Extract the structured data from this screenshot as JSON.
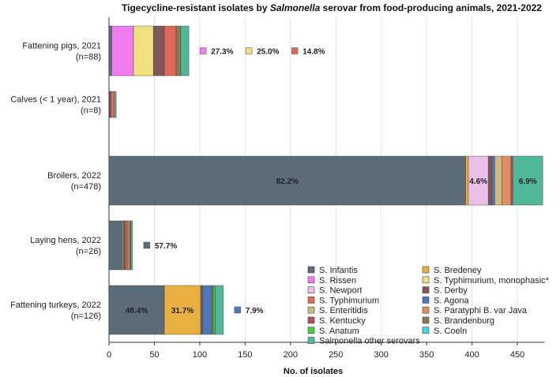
{
  "chart_data": {
    "type": "bar",
    "orientation": "horizontal",
    "stacked": true,
    "title_parts": [
      "Tigecycline-resistant isolates by ",
      "Salmonella",
      " serovar from food-producing animals, 2021-2022"
    ],
    "xlabel": "No. of isolates",
    "xlim": [
      0,
      480
    ],
    "xticks": [
      0,
      50,
      100,
      150,
      200,
      250,
      300,
      350,
      400,
      450
    ],
    "grid": "vertical",
    "legend_position": "bottom-right",
    "categories": [
      {
        "label": "Fattening pigs, 2021",
        "n": "(n=88)"
      },
      {
        "label": "Calves (< 1 year), 2021",
        "n": "(n=8)"
      },
      {
        "label": "Broilers, 2022",
        "n": "(n=478)"
      },
      {
        "label": "Laying hens, 2022",
        "n": "(n=26)"
      },
      {
        "label": "Fattening turkeys, 2022",
        "n": "(n=126)"
      }
    ],
    "series": [
      {
        "name": "S. Infantis",
        "color": "#5b6b78",
        "values": [
          3,
          1,
          393,
          15,
          61
        ]
      },
      {
        "name": "S. Bredeney",
        "color": "#e8b040",
        "values": [
          0,
          0,
          3,
          0,
          40
        ]
      },
      {
        "name": "S. Rissen",
        "color": "#f07cf0",
        "values": [
          24,
          0,
          0,
          0,
          0
        ]
      },
      {
        "name": "S. Typhimurium, monophasic*",
        "color": "#f0e080",
        "values": [
          22,
          0,
          0,
          1,
          0
        ]
      },
      {
        "name": "S. Newport",
        "color": "#e8c0e8",
        "values": [
          0,
          0,
          22,
          0,
          0
        ]
      },
      {
        "name": "S. Derby",
        "color": "#805858",
        "values": [
          12,
          1,
          4,
          2,
          2
        ]
      },
      {
        "name": "S. Typhimurium",
        "color": "#e06a5a",
        "values": [
          13,
          4,
          0,
          2,
          0
        ]
      },
      {
        "name": "S. Agona",
        "color": "#4a78b8",
        "values": [
          0,
          0,
          3,
          0,
          10
        ]
      },
      {
        "name": "S. Enteritidis",
        "color": "#d0b880",
        "values": [
          0,
          0,
          8,
          1,
          0
        ]
      },
      {
        "name": "S. Paratyphi B. var Java",
        "color": "#e09060",
        "values": [
          0,
          0,
          10,
          2,
          0
        ]
      },
      {
        "name": "S. Kentucky",
        "color": "#b05060",
        "values": [
          0,
          0,
          2,
          1,
          0
        ]
      },
      {
        "name": "S. Brandenburg",
        "color": "#8a7a50",
        "values": [
          5,
          0,
          0,
          0,
          2
        ]
      },
      {
        "name": "S. Anatum",
        "color": "#40d040",
        "values": [
          0,
          0,
          0,
          0,
          2
        ]
      },
      {
        "name": "S. Coeln",
        "color": "#40d8d8",
        "values": [
          0,
          0,
          0,
          0,
          0
        ]
      },
      {
        "name": "Salmonella other serovars",
        "color": "#50b898",
        "values": [
          9,
          2,
          33,
          2,
          9
        ]
      }
    ],
    "legend_order": [
      [
        "S. Infantis",
        "S. Rissen",
        "S. Newport",
        "S. Typhimurium",
        "S. Enteritidis",
        "S. Kentucky",
        "S. Anatum",
        "Salmonella other serovars"
      ],
      [
        "S. Bredeney",
        "S. Typhimurium, monophasic*",
        "S. Derby",
        "S. Agona",
        "S. Paratyphi B. var Java",
        "S. Brandenburg",
        "S. Coeln"
      ]
    ],
    "inside_labels": [
      {
        "category": 2,
        "series": "S. Infantis",
        "text": "82.2%"
      },
      {
        "category": 2,
        "series": "S. Newport",
        "text": "4.6%"
      },
      {
        "category": 2,
        "series": "Salmonella other serovars",
        "text": "6.9%"
      },
      {
        "category": 4,
        "series": "S. Infantis",
        "text": "48.4%"
      },
      {
        "category": 4,
        "series": "S. Bredeney",
        "text": "31.7%"
      }
    ],
    "outside_labels": [
      {
        "category": 0,
        "items": [
          {
            "series": "S. Rissen",
            "text": "27.3%"
          },
          {
            "series": "S. Typhimurium, monophasic*",
            "text": "25.0%"
          },
          {
            "series": "S. Typhimurium",
            "text": "14.8%"
          }
        ]
      },
      {
        "category": 3,
        "items": [
          {
            "series": "S. Infantis",
            "text": "57.7%"
          }
        ]
      },
      {
        "category": 4,
        "items": [
          {
            "series": "S. Agona",
            "text": "7.9%"
          }
        ]
      }
    ]
  }
}
